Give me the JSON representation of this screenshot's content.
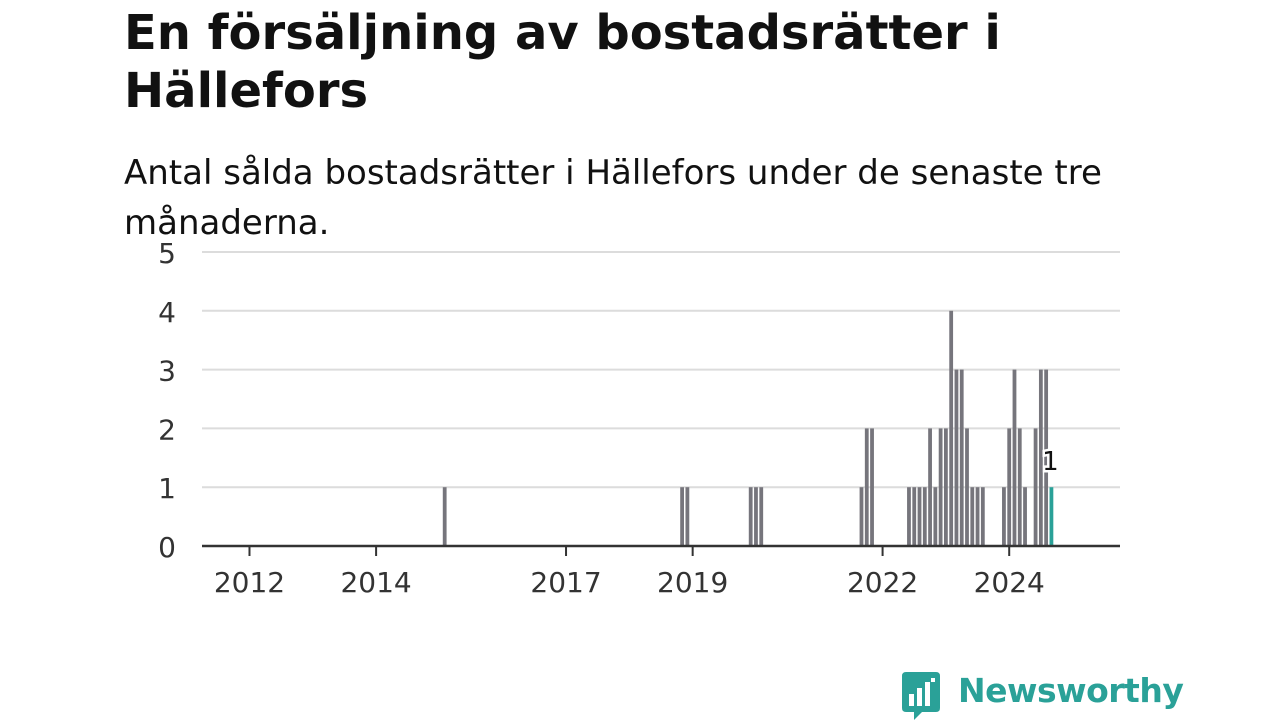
{
  "header": {
    "title": "En försäljning av bostadsrätter i Hällefors",
    "subtitle": "Antal sålda bostadsrätter i Hällefors under de senaste tre månaderna."
  },
  "brand": {
    "name": "Newsworthy",
    "color": "#2aa198",
    "icon": "bar-chart-speech-bubble-icon"
  },
  "chart_data": {
    "type": "bar",
    "title": "",
    "xlabel": "",
    "ylabel": "",
    "ylim": [
      0,
      5
    ],
    "yticks": [
      0,
      1,
      2,
      3,
      4,
      5
    ],
    "xlim": [
      "2011-04",
      "2025-10"
    ],
    "xticks": [
      "2012",
      "2014",
      "2017",
      "2019",
      "2022",
      "2024"
    ],
    "grid": true,
    "legend": "none",
    "bar_color": "#76757c",
    "highlight_color": "#2aa198",
    "highlight": {
      "x": "2024-09",
      "value": 1,
      "label": "1"
    },
    "series": [
      {
        "x": [
          "2015-02",
          "2018-11",
          "2018-12",
          "2019-12",
          "2020-01",
          "2020-02",
          "2021-09",
          "2021-10",
          "2021-11",
          "2022-06",
          "2022-07",
          "2022-08",
          "2022-09",
          "2022-10",
          "2022-11",
          "2022-12",
          "2023-01",
          "2023-02",
          "2023-03",
          "2023-04",
          "2023-05",
          "2023-06",
          "2023-07",
          "2023-08",
          "2023-12",
          "2024-01",
          "2024-02",
          "2024-03",
          "2024-04",
          "2024-06",
          "2024-07",
          "2024-08",
          "2024-09"
        ],
        "values": [
          1,
          1,
          1,
          1,
          1,
          1,
          1,
          2,
          2,
          1,
          1,
          1,
          1,
          2,
          1,
          2,
          2,
          4,
          3,
          3,
          2,
          1,
          1,
          1,
          1,
          2,
          3,
          2,
          1,
          2,
          3,
          3,
          1
        ]
      }
    ]
  }
}
